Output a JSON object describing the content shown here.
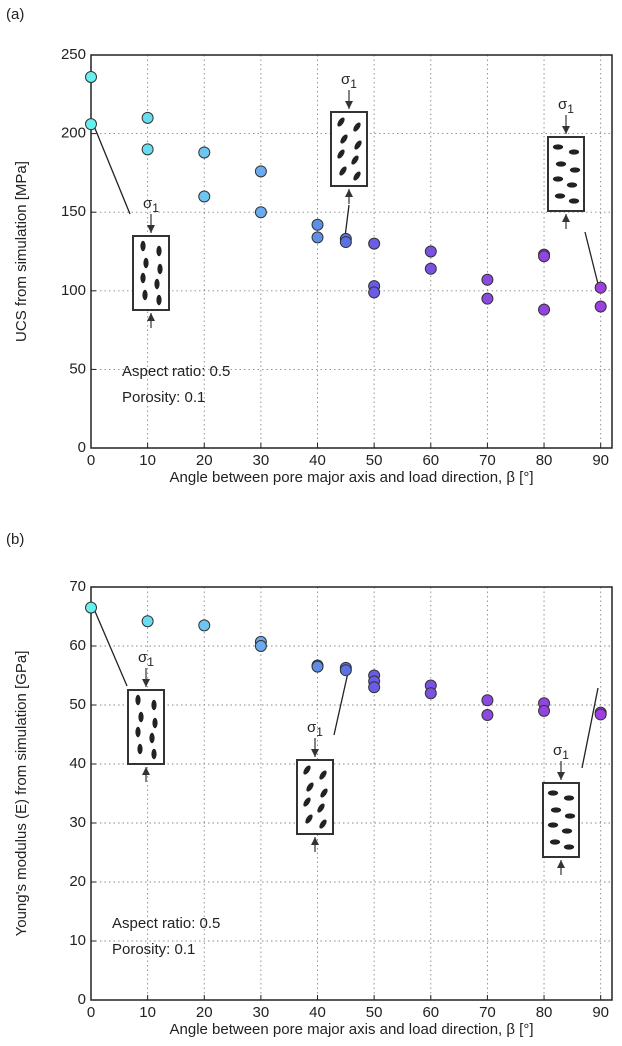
{
  "chart_data": [
    {
      "type": "scatter",
      "panel_label": "(a)",
      "xlabel": "Angle between pore major axis and load direction, β [°]",
      "ylabel": "UCS from simulation [MPa]",
      "xlim": [
        0,
        92
      ],
      "ylim": [
        0,
        250
      ],
      "xticks": [
        0,
        10,
        20,
        30,
        40,
        50,
        60,
        70,
        80,
        90
      ],
      "yticks": [
        0,
        50,
        100,
        150,
        200,
        250
      ],
      "grid": true,
      "series": [
        {
          "color": "#66f0f0",
          "x": [
            0,
            0
          ],
          "values": [
            236,
            206
          ]
        },
        {
          "color": "#68dcf0",
          "x": [
            10,
            10
          ],
          "values": [
            210,
            190
          ]
        },
        {
          "color": "#6cc6f0",
          "x": [
            20,
            20
          ],
          "values": [
            188,
            160
          ]
        },
        {
          "color": "#6aaaee",
          "x": [
            30,
            30
          ],
          "values": [
            176,
            150
          ]
        },
        {
          "color": "#5e8ee8",
          "x": [
            40,
            40
          ],
          "values": [
            142,
            134
          ]
        },
        {
          "color": "#5a72e6",
          "x": [
            45,
            45
          ],
          "values": [
            133,
            131
          ]
        },
        {
          "color": "#6a5ce6",
          "x": [
            50,
            50,
            50
          ],
          "values": [
            130,
            103,
            99
          ]
        },
        {
          "color": "#7a52e2",
          "x": [
            60,
            60
          ],
          "values": [
            125,
            114
          ]
        },
        {
          "color": "#8a4ae0",
          "x": [
            70,
            70
          ],
          "values": [
            107,
            95
          ]
        },
        {
          "color": "#9344e0",
          "x": [
            80,
            80,
            80
          ],
          "values": [
            123,
            122,
            88
          ]
        },
        {
          "color": "#9c40e0",
          "x": [
            90,
            90
          ],
          "values": [
            102,
            90
          ]
        }
      ],
      "annotations": [
        "Aspect ratio: 0.5",
        "Porosity: 0.1"
      ],
      "insets": [
        {
          "label": "σ",
          "subscript": "1"
        },
        {
          "label": "σ",
          "subscript": "1"
        },
        {
          "label": "σ",
          "subscript": "1"
        }
      ]
    },
    {
      "type": "scatter",
      "panel_label": "(b)",
      "xlabel": "Angle between pore major axis and load direction, β [°]",
      "ylabel": "Young's modulus (E) from simulation [GPa]",
      "xlim": [
        0,
        92
      ],
      "ylim": [
        0,
        70
      ],
      "xticks": [
        0,
        10,
        20,
        30,
        40,
        50,
        60,
        70,
        80,
        90
      ],
      "yticks": [
        0,
        10,
        20,
        30,
        40,
        50,
        60,
        70
      ],
      "grid": true,
      "series": [
        {
          "color": "#66f0f0",
          "x": [
            0
          ],
          "values": [
            66.5
          ]
        },
        {
          "color": "#68dcf0",
          "x": [
            10
          ],
          "values": [
            64.2
          ]
        },
        {
          "color": "#6cc6f0",
          "x": [
            20
          ],
          "values": [
            63.5
          ]
        },
        {
          "color": "#6aaaee",
          "x": [
            30,
            30
          ],
          "values": [
            60.7,
            60.0
          ]
        },
        {
          "color": "#5e8ee8",
          "x": [
            40,
            40
          ],
          "values": [
            56.7,
            56.5
          ]
        },
        {
          "color": "#5a72e6",
          "x": [
            45,
            45
          ],
          "values": [
            56.3,
            55.9
          ]
        },
        {
          "color": "#6a5ce6",
          "x": [
            50,
            50,
            50
          ],
          "values": [
            55.0,
            54.0,
            53.0
          ]
        },
        {
          "color": "#7a52e2",
          "x": [
            60,
            60
          ],
          "values": [
            53.3,
            52.0
          ]
        },
        {
          "color": "#8a4ae0",
          "x": [
            70,
            70
          ],
          "values": [
            50.8,
            48.3
          ]
        },
        {
          "color": "#9344e0",
          "x": [
            80,
            80
          ],
          "values": [
            50.3,
            49.0
          ]
        },
        {
          "color": "#9c40e0",
          "x": [
            90,
            90
          ],
          "values": [
            48.7,
            48.4
          ]
        }
      ],
      "annotations": [
        "Aspect ratio: 0.5",
        "Porosity: 0.1"
      ],
      "insets": [
        {
          "label": "σ",
          "subscript": "1"
        },
        {
          "label": "σ",
          "subscript": "1"
        },
        {
          "label": "σ",
          "subscript": "1"
        }
      ]
    }
  ]
}
